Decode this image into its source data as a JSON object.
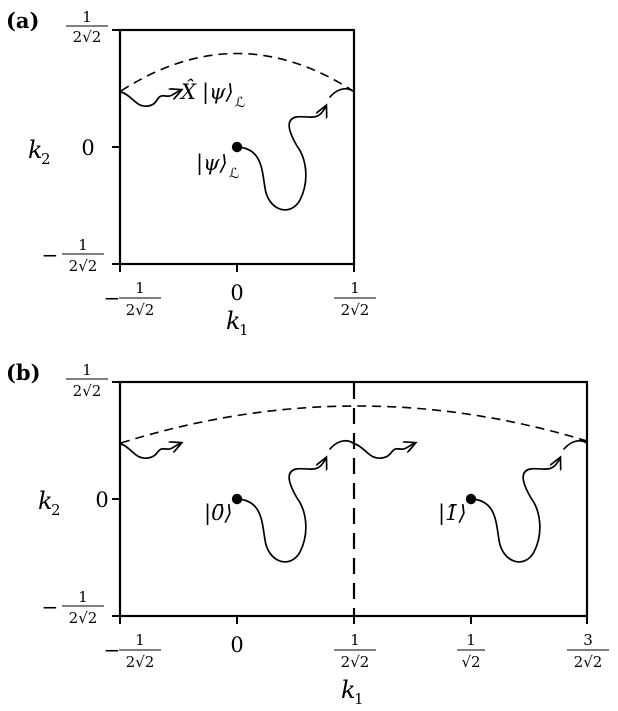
{
  "panel_a": {
    "label": "(a)",
    "y_axis_label": "k",
    "y_axis_label_sub": "2",
    "x_axis_label": "k",
    "x_axis_label_sub": "1",
    "y_ticks": {
      "top": {
        "num": "1",
        "den": "2√2"
      },
      "middle": "0",
      "bottom": {
        "sign": "−",
        "num": "1",
        "den": "2√2"
      }
    },
    "x_ticks": {
      "left": {
        "sign": "−",
        "num": "1",
        "den": "2√2"
      },
      "middle": "0",
      "right": {
        "num": "1",
        "den": "2√2"
      }
    },
    "state_label": "|ψ⟩",
    "state_sub": "ℒ",
    "x_op_hat": "X̂",
    "x_op_ket": "|ψ⟩",
    "x_op_sub": "ℒ"
  },
  "panel_b": {
    "label": "(b)",
    "y_axis_label": "k",
    "y_axis_label_sub": "2",
    "x_axis_label": "k",
    "x_axis_label_sub": "1",
    "y_ticks": {
      "top": {
        "num": "1",
        "den": "2√2"
      },
      "middle": "0",
      "bottom": {
        "sign": "−",
        "num": "1",
        "den": "2√2"
      }
    },
    "x_ticks": {
      "t0": {
        "sign": "−",
        "num": "1",
        "den": "2√2"
      },
      "t1": "0",
      "t2": {
        "num": "1",
        "den": "2√2"
      },
      "t3": {
        "num": "1",
        "den": "√2"
      },
      "t4": {
        "num": "3",
        "den": "2√2"
      }
    },
    "state0_label": "|0̄⟩",
    "state1_label": "|1̄⟩"
  }
}
